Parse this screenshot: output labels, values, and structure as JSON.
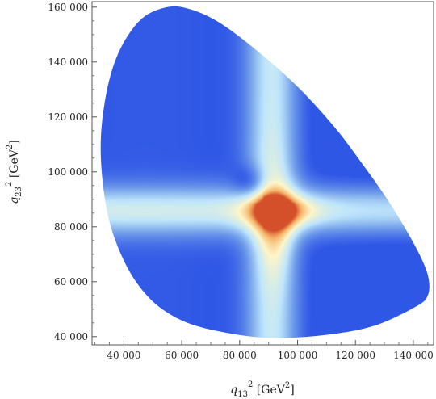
{
  "chart_data": {
    "type": "heatmap",
    "title": "",
    "xlabel": {
      "var": "q",
      "sub": "13",
      "sup": "2",
      "unit": "[GeV",
      "unit_sup": "2",
      "close": "]"
    },
    "ylabel": {
      "var": "q",
      "sub": "23",
      "sup": "2",
      "unit": "[GeV",
      "unit_sup": "2",
      "close": "]"
    },
    "xlim": [
      29000,
      147000
    ],
    "ylim": [
      37000,
      162000
    ],
    "x_ticks": [
      {
        "value": 40000,
        "label": "40 000"
      },
      {
        "value": 60000,
        "label": "60 000"
      },
      {
        "value": 80000,
        "label": "80 000"
      },
      {
        "value": 100000,
        "label": "100 000"
      },
      {
        "value": 120000,
        "label": "120 000"
      },
      {
        "value": 140000,
        "label": "140 000"
      }
    ],
    "y_ticks": [
      {
        "value": 40000,
        "label": "40 000"
      },
      {
        "value": 60000,
        "label": "60 000"
      },
      {
        "value": 80000,
        "label": "80 000"
      },
      {
        "value": 100000,
        "label": "100 000"
      },
      {
        "value": 120000,
        "label": "120 000"
      },
      {
        "value": 140000,
        "label": "140 000"
      },
      {
        "value": 160000,
        "label": "160 000"
      }
    ],
    "region_boundary": [
      [
        55000,
        160000
      ],
      [
        47000,
        156500
      ],
      [
        41000,
        149000
      ],
      [
        36500,
        139000
      ],
      [
        33500,
        126000
      ],
      [
        32000,
        111000
      ],
      [
        32700,
        96000
      ],
      [
        35000,
        82000
      ],
      [
        39000,
        70000
      ],
      [
        44500,
        59500
      ],
      [
        52000,
        51000
      ],
      [
        62000,
        45000
      ],
      [
        75000,
        41500
      ],
      [
        90000,
        39600
      ],
      [
        108000,
        40400
      ],
      [
        126000,
        43800
      ],
      [
        141000,
        51000
      ],
      [
        145000,
        55000
      ],
      [
        145300,
        61000
      ],
      [
        143000,
        68000
      ],
      [
        138000,
        78000
      ],
      [
        131000,
        90000
      ],
      [
        123000,
        102000
      ],
      [
        113000,
        116000
      ],
      [
        100000,
        131000
      ],
      [
        85000,
        145000
      ],
      [
        72000,
        155000
      ],
      [
        62000,
        159500
      ]
    ],
    "features": [
      {
        "kind": "resonance-band",
        "orientation": "vertical",
        "center": 91000,
        "width": 9000,
        "intensity": 0.45
      },
      {
        "kind": "resonance-band",
        "orientation": "horizontal",
        "center": 86000,
        "width": 9000,
        "intensity": 0.45
      },
      {
        "kind": "peak",
        "x": 92000,
        "y": 86000,
        "intensity": 1.0
      },
      {
        "kind": "dip",
        "x": 84000,
        "y": 96000,
        "intensity": 0.25
      }
    ],
    "colormap": [
      "#2f57e6",
      "#6f9bea",
      "#bfe6fb",
      "#fdf6c9",
      "#f6b56a",
      "#d4502a"
    ],
    "grid": false,
    "legend": "none"
  }
}
